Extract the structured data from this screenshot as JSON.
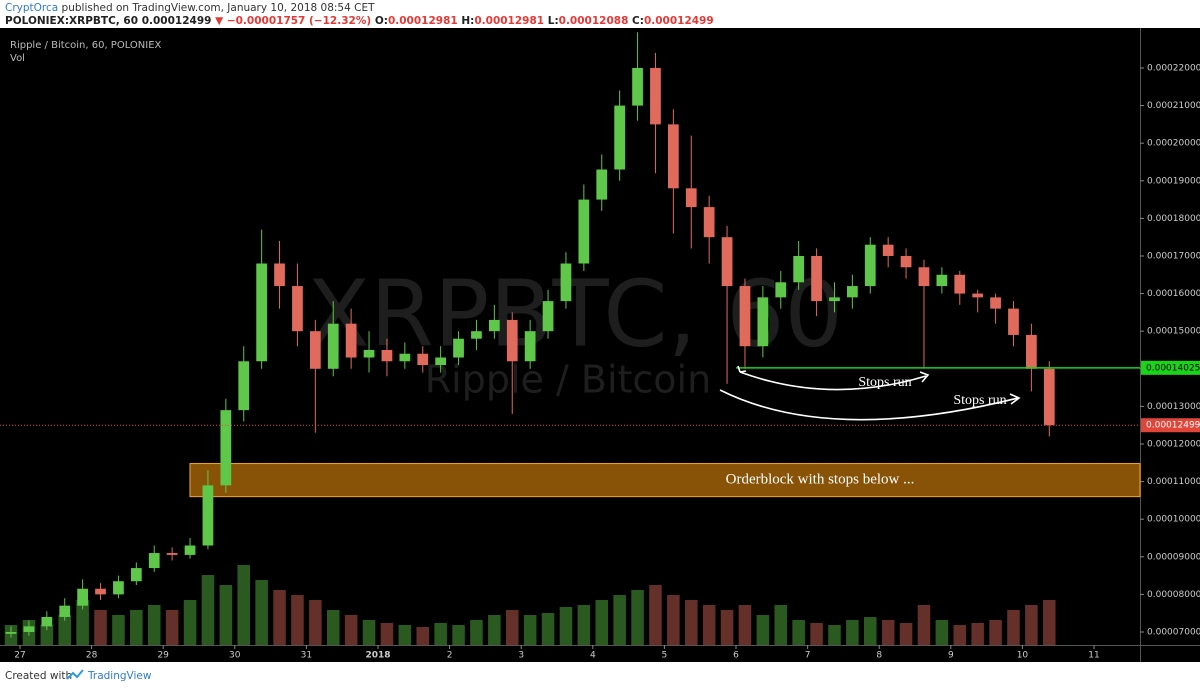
{
  "header": {
    "author": "CryptOrca",
    "published": "published on TradingView.com, January 10, 2018 08:54 CET",
    "symbol": "POLONIEX:XRPBTC, 60",
    "price": "0.00012499",
    "change": "▼ −0.00001757 (−12.32%)",
    "open_label": "O:",
    "open": "0.00012981",
    "high_label": "H:",
    "high": "0.00012981",
    "low_label": "L:",
    "low": "0.00012088",
    "close_label": "C:",
    "close": "0.00012499"
  },
  "footer": {
    "created": "Created with",
    "brand": "TradingView"
  },
  "chart_data": {
    "type": "candlestick",
    "legend": "Ripple / Bitcoin, 60, POLONIEX",
    "volume_label": "Vol",
    "watermark": {
      "symbol": "XRPBTC, 60",
      "name": "Ripple / Bitcoin"
    },
    "up_color": "#5fc74a",
    "down_color": "#e06a5c",
    "grid": false,
    "xlim": [
      -0.279,
      15.642
    ],
    "xticks": [
      {
        "value": 0,
        "label": "27"
      },
      {
        "value": 1,
        "label": "28"
      },
      {
        "value": 2,
        "label": "29"
      },
      {
        "value": 3,
        "label": "30"
      },
      {
        "value": 4,
        "label": "31"
      },
      {
        "value": 5,
        "label": "2018"
      },
      {
        "value": 6,
        "label": "2"
      },
      {
        "value": 7,
        "label": "3"
      },
      {
        "value": 8,
        "label": "4"
      },
      {
        "value": 9,
        "label": "5"
      },
      {
        "value": 10,
        "label": "6"
      },
      {
        "value": 11,
        "label": "7"
      },
      {
        "value": 12,
        "label": "8"
      },
      {
        "value": 13,
        "label": "9"
      },
      {
        "value": 14,
        "label": "10"
      },
      {
        "value": 15,
        "label": "11"
      }
    ],
    "ylim": [
      6.654e-05,
      0.0002301
    ],
    "yticks": [
      {
        "value": 7e-05,
        "label": "0.00007000"
      },
      {
        "value": 8e-05,
        "label": "0.00008000"
      },
      {
        "value": 9e-05,
        "label": "0.00009000"
      },
      {
        "value": 0.0001,
        "label": "0.00010000"
      },
      {
        "value": 0.00011,
        "label": "0.00011000"
      },
      {
        "value": 0.00012,
        "label": "0.00012000"
      },
      {
        "value": 0.00013,
        "label": "0.00013000"
      },
      {
        "value": 0.00014,
        "label": "0.00014000"
      },
      {
        "value": 0.00015,
        "label": "0.00015000"
      },
      {
        "value": 0.00016,
        "label": "0.00016000"
      },
      {
        "value": 0.00017,
        "label": "0.00017000"
      },
      {
        "value": 0.00018,
        "label": "0.00018000"
      },
      {
        "value": 0.00019,
        "label": "0.00019000"
      },
      {
        "value": 0.0002,
        "label": "0.00020000"
      },
      {
        "value": 0.00021,
        "label": "0.00021000"
      },
      {
        "value": 0.00022,
        "label": "0.00022000"
      }
    ],
    "x": [
      -0.125,
      0.125,
      0.375,
      0.625,
      0.875,
      1.125,
      1.375,
      1.625,
      1.875,
      2.125,
      2.375,
      2.625,
      2.875,
      3.125,
      3.375,
      3.625,
      3.875,
      4.125,
      4.375,
      4.625,
      4.875,
      5.125,
      5.375,
      5.625,
      5.875,
      6.125,
      6.375,
      6.625,
      6.875,
      7.125,
      7.375,
      7.625,
      7.875,
      8.125,
      8.375,
      8.625,
      8.875,
      9.125,
      9.375,
      9.625,
      9.875,
      10.125,
      10.375,
      10.625,
      10.875,
      11.125,
      11.375,
      11.625,
      11.875,
      12.125,
      12.375,
      12.625,
      12.875,
      13.125,
      13.375,
      13.625,
      13.875,
      14.125,
      14.375
    ],
    "ohlc": [
      [
        6.95e-05,
        7.15e-05,
        6.85e-05,
        7e-05
      ],
      [
        7e-05,
        7.3e-05,
        6.9e-05,
        7.15e-05
      ],
      [
        7.15e-05,
        7.55e-05,
        7.05e-05,
        7.4e-05
      ],
      [
        7.4e-05,
        7.9e-05,
        7.3e-05,
        7.7e-05
      ],
      [
        7.7e-05,
        8.4e-05,
        7.6e-05,
        8.15e-05
      ],
      [
        8.15e-05,
        8.3e-05,
        7.85e-05,
        8e-05
      ],
      [
        8e-05,
        8.5e-05,
        7.9e-05,
        8.35e-05
      ],
      [
        8.35e-05,
        8.85e-05,
        8.25e-05,
        8.7e-05
      ],
      [
        8.7e-05,
        9.3e-05,
        8.6e-05,
        9.1e-05
      ],
      [
        9.1e-05,
        9.25e-05,
        8.9e-05,
        9.05e-05
      ],
      [
        9.05e-05,
        9.5e-05,
        8.95e-05,
        9.3e-05
      ],
      [
        9.3e-05,
        0.000113,
        9.2e-05,
        0.000109
      ],
      [
        0.000109,
        0.000132,
        0.000107,
        0.000129
      ],
      [
        0.000129,
        0.000146,
        0.000126,
        0.000142
      ],
      [
        0.000142,
        0.000177,
        0.00014,
        0.000168
      ],
      [
        0.000168,
        0.000174,
        0.000156,
        0.000162
      ],
      [
        0.000162,
        0.000168,
        0.000146,
        0.00015
      ],
      [
        0.00015,
        0.000153,
        0.000123,
        0.00014
      ],
      [
        0.00014,
        0.000158,
        0.000138,
        0.000152
      ],
      [
        0.000152,
        0.000156,
        0.00014,
        0.000143
      ],
      [
        0.000143,
        0.00015,
        0.000139,
        0.000145
      ],
      [
        0.000145,
        0.000148,
        0.000138,
        0.000142
      ],
      [
        0.000142,
        0.000147,
        0.00014,
        0.000144
      ],
      [
        0.000144,
        0.000146,
        0.000139,
        0.000141
      ],
      [
        0.000141,
        0.000146,
        0.000139,
        0.000143
      ],
      [
        0.000143,
        0.00015,
        0.000141,
        0.000148
      ],
      [
        0.000148,
        0.000153,
        0.000145,
        0.00015
      ],
      [
        0.00015,
        0.000157,
        0.000148,
        0.000153
      ],
      [
        0.000153,
        0.000155,
        0.000128,
        0.000142
      ],
      [
        0.000142,
        0.000153,
        0.00014,
        0.00015
      ],
      [
        0.00015,
        0.000161,
        0.000148,
        0.000158
      ],
      [
        0.000158,
        0.000171,
        0.000156,
        0.000168
      ],
      [
        0.000168,
        0.000189,
        0.000166,
        0.000185
      ],
      [
        0.000185,
        0.000197,
        0.000182,
        0.000193
      ],
      [
        0.000193,
        0.000214,
        0.00019,
        0.00021
      ],
      [
        0.00021,
        0.0002295,
        0.000206,
        0.00022
      ],
      [
        0.00022,
        0.000224,
        0.000192,
        0.000205
      ],
      [
        0.000205,
        0.000209,
        0.000176,
        0.000188
      ],
      [
        0.000188,
        0.000202,
        0.000172,
        0.000183
      ],
      [
        0.000183,
        0.000186,
        0.000168,
        0.000175
      ],
      [
        0.000175,
        0.000178,
        0.000136,
        0.000162
      ],
      [
        0.000162,
        0.000164,
        0.00014,
        0.000146
      ],
      [
        0.000146,
        0.000162,
        0.000143,
        0.000159
      ],
      [
        0.000159,
        0.000166,
        0.000156,
        0.000163
      ],
      [
        0.000163,
        0.000174,
        0.000161,
        0.00017
      ],
      [
        0.00017,
        0.000172,
        0.000154,
        0.000158
      ],
      [
        0.000158,
        0.000163,
        0.000155,
        0.000159
      ],
      [
        0.000159,
        0.000165,
        0.000156,
        0.000162
      ],
      [
        0.000162,
        0.000175,
        0.00016,
        0.000173
      ],
      [
        0.000173,
        0.000175,
        0.000167,
        0.00017
      ],
      [
        0.00017,
        0.000172,
        0.000164,
        0.000167
      ],
      [
        0.000167,
        0.000169,
        0.00014,
        0.000162
      ],
      [
        0.000162,
        0.000167,
        0.00016,
        0.000165
      ],
      [
        0.000165,
        0.000166,
        0.000157,
        0.00016
      ],
      [
        0.00016,
        0.000161,
        0.000155,
        0.000159
      ],
      [
        0.000159,
        0.00016,
        0.000152,
        0.000156
      ],
      [
        0.000156,
        0.000158,
        0.000146,
        0.000149
      ],
      [
        0.000149,
        0.000152,
        0.000134,
        0.00014
      ],
      [
        0.00014,
        0.000142,
        0.000122,
        0.00012499
      ]
    ],
    "volume": [
      20,
      25,
      20,
      30,
      45,
      35,
      30,
      35,
      40,
      35,
      45,
      70,
      60,
      80,
      65,
      55,
      50,
      45,
      35,
      30,
      25,
      22,
      20,
      18,
      22,
      20,
      25,
      30,
      35,
      30,
      32,
      38,
      40,
      45,
      50,
      55,
      60,
      50,
      45,
      40,
      35,
      40,
      30,
      40,
      25,
      22,
      20,
      25,
      28,
      25,
      22,
      40,
      25,
      20,
      22,
      25,
      35,
      40,
      45
    ],
    "volume_lim": [
      0,
      130
    ],
    "last_price": 0.00012499,
    "last_price_color": "#e0453a",
    "level": {
      "value": 0.00014025,
      "x_start": 10,
      "color": "#19d419"
    },
    "orderblock": {
      "text": "Orderblock with stops below ...",
      "range": [
        0.000106,
        0.0001148
      ],
      "x_start": 2.374
    },
    "annotations": [
      "Stops run",
      "Stops run"
    ]
  }
}
